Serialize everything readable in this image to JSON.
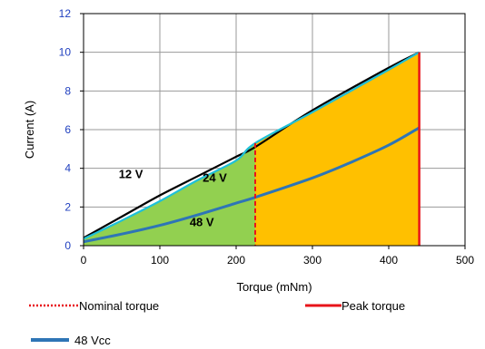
{
  "chart_data": {
    "type": "area",
    "xlabel": "Torque (mNm)",
    "ylabel": "Current (A)",
    "xlim": [
      0,
      500
    ],
    "ylim": [
      0,
      12
    ],
    "x_ticks": [
      "0",
      "100",
      "200",
      "300",
      "400",
      "500"
    ],
    "y_ticks": [
      "0",
      "2",
      "4",
      "6",
      "8",
      "10",
      "12"
    ],
    "grid": true,
    "nominal_torque": 225,
    "peak_torque": 440,
    "series": [
      {
        "name": "12 V",
        "color": "#000000",
        "x": [
          0,
          50,
          100,
          150,
          200,
          225,
          300,
          400,
          440
        ],
        "y": [
          0.4,
          1.5,
          2.6,
          3.6,
          4.6,
          5.1,
          7.0,
          9.2,
          10.0
        ]
      },
      {
        "name": "24 V",
        "color": "#1fc0d8",
        "x": [
          0,
          50,
          100,
          150,
          200,
          225,
          300,
          400,
          440
        ],
        "y": [
          0.35,
          1.3,
          2.3,
          3.4,
          4.4,
          5.3,
          6.9,
          9.1,
          10.0
        ]
      },
      {
        "name": "48 V",
        "color": "#2e75b6",
        "x": [
          0,
          50,
          100,
          150,
          200,
          225,
          300,
          350,
          400,
          440
        ],
        "y": [
          0.2,
          0.6,
          1.05,
          1.6,
          2.2,
          2.5,
          3.5,
          4.3,
          5.2,
          6.1
        ]
      }
    ],
    "curve_labels": [
      {
        "text": "12 V",
        "x": 62,
        "y": 3.5
      },
      {
        "text": "24 V",
        "x": 172,
        "y": 3.3
      },
      {
        "text": "48 V",
        "x": 155,
        "y": 1.0
      }
    ],
    "legend": [
      {
        "text": "Nominal torque",
        "style": "dotted",
        "color": "#e8141a"
      },
      {
        "text": "Peak torque",
        "style": "solid",
        "color": "#e8141a"
      },
      {
        "text": "48 Vcc",
        "style": "solid",
        "color": "#2e75b6"
      }
    ],
    "colors": {
      "continuous_region": "#92d050",
      "intermittent_region": "#ffc000",
      "torque_limit": "#e8141a",
      "grid": "#9a9a9a"
    }
  }
}
